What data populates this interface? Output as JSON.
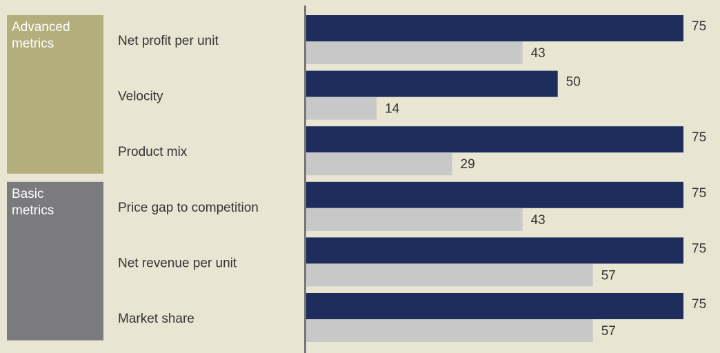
{
  "chart_data": {
    "type": "bar",
    "orientation": "horizontal",
    "categories": [
      "Net profit per unit",
      "Velocity",
      "Product mix",
      "Price gap to competition",
      "Net revenue per unit",
      "Market share"
    ],
    "series": [
      {
        "color": "#1f2d5c",
        "values": [
          75,
          50,
          75,
          75,
          75,
          75
        ]
      },
      {
        "color": "#c8c8c8",
        "values": [
          43,
          14,
          29,
          43,
          57,
          57
        ]
      }
    ],
    "groups": [
      {
        "label": "Advanced metrics",
        "size": 3,
        "color": "#b3ae7b"
      },
      {
        "label": "Basic metrics",
        "size": 3,
        "color": "#7b7b7f"
      }
    ],
    "xlim": [
      0,
      75
    ]
  }
}
